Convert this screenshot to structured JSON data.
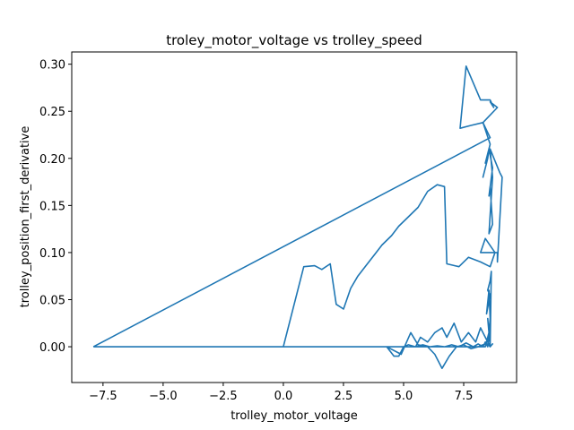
{
  "chart_data": {
    "type": "line",
    "title": "troley_motor_voltage vs trolley_speed",
    "xlabel": "trolley_motor_voltage",
    "ylabel": "trolley_position_first_derivative",
    "xlim": [
      -8.8,
      9.7
    ],
    "ylim": [
      -0.038,
      0.313
    ],
    "xticks": [
      -7.5,
      -5.0,
      -2.5,
      0.0,
      2.5,
      5.0,
      7.5
    ],
    "xtick_labels": [
      "−7.5",
      "−5.0",
      "−2.5",
      "0.0",
      "2.5",
      "5.0",
      "7.5"
    ],
    "yticks": [
      0.0,
      0.05,
      0.1,
      0.15,
      0.2,
      0.25,
      0.3
    ],
    "ytick_labels": [
      "0.00",
      "0.05",
      "0.10",
      "0.15",
      "0.20",
      "0.25",
      "0.30"
    ],
    "grid": false,
    "color": "#1f77b4",
    "series": [
      {
        "x": [
          -7.9,
          8.6,
          8.6,
          8.3,
          8.3,
          8.9,
          8.9,
          8.6,
          8.6,
          8.75,
          8.75,
          8.6,
          8.6,
          8.2,
          8.2,
          7.6,
          7.6,
          7.35,
          7.35,
          7.8,
          7.8,
          8.3,
          8.3,
          8.6,
          8.6,
          8.4,
          8.4,
          8.5,
          8.5,
          8.3,
          8.3,
          8.5,
          8.5,
          8.55,
          8.55,
          8.7,
          8.7,
          8.55,
          8.55,
          8.6,
          8.6,
          8.7,
          8.7,
          8.55,
          8.55,
          8.6,
          8.6,
          8.7,
          8.7,
          8.6,
          8.6,
          9.0,
          9.0,
          9.1,
          9.1,
          8.9,
          8.9,
          8.9,
          8.9,
          8.2,
          8.2,
          8.4,
          8.4,
          8.8,
          8.8,
          8.6,
          8.6,
          8.2,
          8.2,
          7.7,
          7.7,
          7.3,
          7.3,
          6.8,
          6.8,
          6.7,
          6.7,
          6.4,
          6.4,
          6.0,
          6.0,
          5.6,
          5.6,
          5.2,
          5.2,
          4.8,
          4.8,
          4.5,
          4.5,
          4.1,
          4.1,
          3.8,
          3.8,
          3.4,
          3.4,
          3.1,
          3.1,
          2.8,
          2.8,
          2.5,
          2.5,
          2.2,
          2.2,
          1.95,
          1.95,
          1.6,
          1.6,
          1.3,
          1.3,
          0.85,
          0.85,
          0.0,
          0.0,
          8.4,
          8.4,
          8.6,
          8.6,
          8.6,
          8.6,
          8.6,
          8.6,
          8.6,
          8.6,
          8.4,
          8.4,
          8.2,
          8.2,
          8.0,
          8.0,
          7.7,
          7.7,
          7.4,
          7.4,
          7.1,
          7.1,
          6.8,
          6.8,
          6.6,
          6.6,
          6.3,
          6.3,
          6.0,
          6.0,
          5.7,
          5.7,
          5.5,
          5.5,
          5.2,
          5.2,
          5.0,
          5.0,
          4.8,
          4.8,
          4.6,
          4.6,
          4.3,
          4.3,
          4.3,
          4.3,
          4.9,
          4.9,
          5.3,
          5.3,
          5.6,
          5.6,
          6.0,
          6.0,
          6.3,
          6.3,
          6.6,
          6.6,
          6.9,
          6.9,
          7.2,
          7.2,
          7.5,
          7.5,
          7.8,
          7.8,
          8.1,
          8.1,
          8.3,
          8.3,
          8.5,
          8.5,
          8.6,
          8.6,
          8.7,
          8.7,
          8.6,
          8.6,
          8.5,
          8.5,
          8.6,
          8.6,
          8.65,
          8.65,
          8.6,
          8.6,
          8.5,
          8.5,
          8.6,
          8.6,
          8.45,
          8.45,
          8.55,
          8.55,
          8.6,
          8.6,
          8.5,
          8.5,
          8.4,
          8.4,
          8.3,
          8.3,
          8.1,
          8.1,
          7.9,
          7.9,
          7.6,
          7.6,
          7.3,
          7.3,
          7.0,
          7.0,
          6.7,
          6.7,
          6.4,
          6.4,
          6.1,
          6.1,
          5.8,
          5.8,
          5.5,
          5.5,
          5.2,
          5.2,
          4.9,
          4.9,
          4.6,
          4.6,
          0.0,
          -7.9
        ],
        "y": [
          0.0,
          0.222,
          0.222,
          0.238,
          0.238,
          0.254,
          0.254,
          0.26,
          0.26,
          0.254,
          0.254,
          0.262,
          0.262,
          0.262,
          0.262,
          0.298,
          0.298,
          0.232,
          0.232,
          0.235,
          0.235,
          0.238,
          0.238,
          0.215,
          0.215,
          0.195,
          0.195,
          0.2,
          0.2,
          0.18,
          0.18,
          0.2,
          0.2,
          0.21,
          0.21,
          0.19,
          0.19,
          0.16,
          0.16,
          0.17,
          0.17,
          0.13,
          0.13,
          0.12,
          0.12,
          0.14,
          0.14,
          0.18,
          0.18,
          0.21,
          0.21,
          0.185,
          0.185,
          0.18,
          0.18,
          0.09,
          0.09,
          0.1,
          0.1,
          0.1,
          0.1,
          0.115,
          0.115,
          0.1,
          0.1,
          0.085,
          0.085,
          0.09,
          0.09,
          0.095,
          0.095,
          0.085,
          0.085,
          0.088,
          0.088,
          0.17,
          0.17,
          0.172,
          0.172,
          0.165,
          0.165,
          0.148,
          0.148,
          0.138,
          0.138,
          0.128,
          0.128,
          0.118,
          0.118,
          0.108,
          0.108,
          0.098,
          0.098,
          0.085,
          0.085,
          0.075,
          0.075,
          0.062,
          0.062,
          0.04,
          0.04,
          0.045,
          0.045,
          0.088,
          0.088,
          0.082,
          0.082,
          0.086,
          0.086,
          0.085,
          0.085,
          0.0,
          0.0,
          0.0,
          0.0,
          0.02,
          0.02,
          0.0,
          0.0,
          0.03,
          0.03,
          0.0,
          0.0,
          0.01,
          0.01,
          0.02,
          0.02,
          0.005,
          0.005,
          0.015,
          0.015,
          0.005,
          0.005,
          0.025,
          0.025,
          0.01,
          0.01,
          0.02,
          0.02,
          0.015,
          0.015,
          0.005,
          0.005,
          0.01,
          0.01,
          0.0,
          0.0,
          0.002,
          0.002,
          0.0,
          0.0,
          -0.01,
          -0.01,
          -0.01,
          -0.01,
          0.0,
          0.0,
          0.0,
          0.0,
          -0.008,
          -0.008,
          0.015,
          0.015,
          0.002,
          0.002,
          0.0,
          0.0,
          -0.008,
          -0.008,
          -0.023,
          -0.023,
          -0.01,
          -0.01,
          0.0,
          0.0,
          0.002,
          0.002,
          -0.002,
          -0.002,
          0.0,
          0.0,
          0.002,
          0.002,
          0.003,
          0.003,
          0.0,
          0.0,
          0.003,
          0.003,
          0.0,
          0.0,
          0.03,
          0.03,
          0.0,
          0.0,
          0.08,
          0.08,
          0.07,
          0.07,
          0.06,
          0.06,
          0.055,
          0.055,
          0.035,
          0.035,
          0.06,
          0.06,
          0.03,
          0.03,
          0.0,
          0.0,
          0.005,
          0.005,
          0.0,
          0.0,
          0.003,
          0.003,
          0.0,
          0.0,
          0.004,
          0.004,
          0.0,
          0.0,
          0.002,
          0.002,
          0.0,
          0.0,
          0.001,
          0.001,
          0.0,
          0.0,
          0.002,
          0.002,
          0.0,
          0.0,
          0.0,
          0.0,
          0.0,
          0.0,
          0.0,
          0.0,
          0.0,
          0.0
        ]
      }
    ]
  }
}
